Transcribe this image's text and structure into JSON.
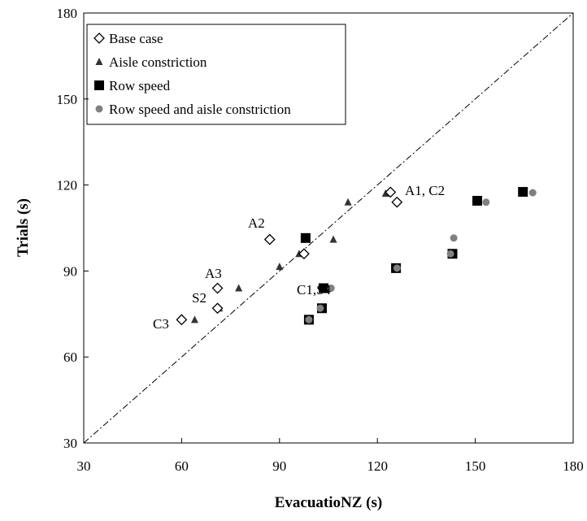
{
  "chart_data": {
    "type": "scatter",
    "x_label": "EvacuatioNZ (s)",
    "y_label": "Trials (s)",
    "xlim": [
      30,
      180
    ],
    "ylim": [
      30,
      180
    ],
    "xticks": [
      30,
      60,
      90,
      120,
      150,
      180
    ],
    "yticks": [
      30,
      60,
      90,
      120,
      150,
      180
    ],
    "series": [
      {
        "name": "Row speed",
        "marker": "square",
        "color": "#000000",
        "x": [
          98,
          103.5,
          99,
          103,
          125.7,
          143,
          150.6,
          164.6
        ],
        "values": [
          101.5,
          84,
          73,
          77,
          91,
          96,
          114.5,
          117.6
        ]
      },
      {
        "name": "Row speed and aisle constriction",
        "marker": "circle",
        "color": "#808080",
        "x": [
          99,
          102.5,
          105.8,
          126,
          142.4,
          143.4,
          153.3,
          167.6
        ],
        "values": [
          73,
          77,
          84,
          91,
          96,
          101.5,
          114,
          117.3
        ]
      },
      {
        "name": "Aisle constriction",
        "marker": "triangle",
        "color": "#333333",
        "x": [
          64,
          71.5,
          77.5,
          90,
          96,
          106.5,
          111,
          122.5
        ],
        "values": [
          73,
          77,
          84,
          91.5,
          96,
          101,
          114,
          117
        ]
      },
      {
        "name": "Base case",
        "marker": "diamond",
        "color": "#000000",
        "x": [
          60,
          71,
          71,
          87,
          97.5,
          124,
          126
        ],
        "values": [
          73,
          84,
          77,
          101,
          96,
          117.5,
          114
        ]
      }
    ],
    "legend_order": [
      3,
      2,
      0,
      1
    ],
    "annotations": [
      "A1, C2",
      "A2",
      "A3",
      "S2",
      "C3",
      "C1,S4"
    ]
  }
}
